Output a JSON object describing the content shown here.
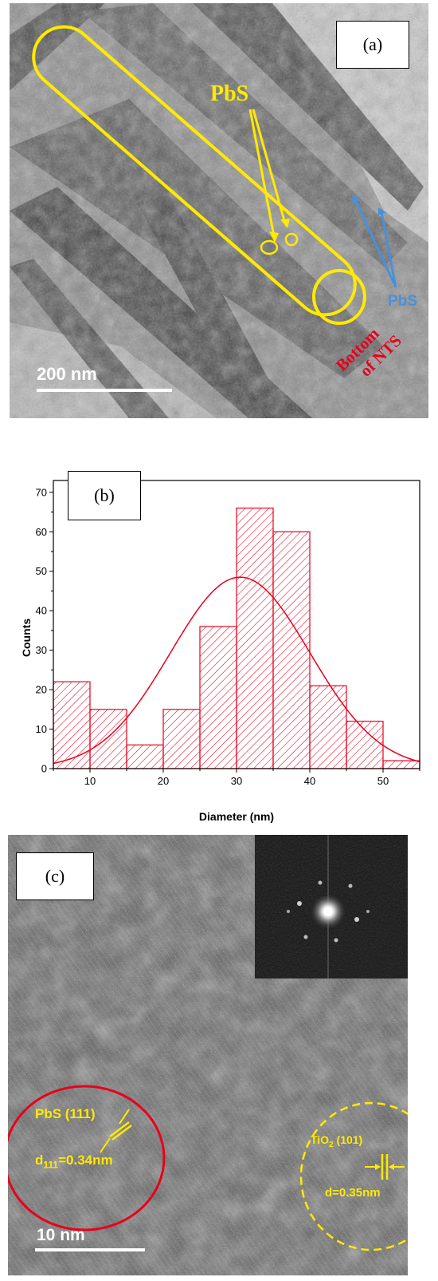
{
  "panel_a": {
    "label": "(a)",
    "pbs_yellow": "PbS",
    "pbs_blue": "PbS",
    "bottom_line1": "Bottom",
    "bottom_line2": "of NTS",
    "scale": "200 nm",
    "colors": {
      "yellow": "#ffea00",
      "blue": "#4a90d9",
      "red": "#e8001c"
    }
  },
  "panel_c": {
    "label": "(c)",
    "pbs_plane": "PbS (111)",
    "pbs_d_prefix": "d",
    "pbs_d_sub": "111",
    "pbs_d_value": "=0.34nm",
    "tio2_prefix": "TiO",
    "tio2_sub": "2",
    "tio2_plane": " (101)",
    "tio2_d": "d=0.35nm",
    "scale": "10 nm",
    "colors": {
      "yellow": "#ffea00",
      "red": "#e8001c"
    }
  },
  "chart_data": {
    "type": "bar",
    "panel_label": "(b)",
    "xlabel": "Diameter (nm)",
    "ylabel": "Counts",
    "xlim": [
      5,
      55
    ],
    "ylim": [
      0,
      73
    ],
    "xticks": [
      10,
      20,
      30,
      40,
      50
    ],
    "yticks": [
      0,
      10,
      20,
      30,
      40,
      50,
      60,
      70
    ],
    "bins": [
      {
        "x0": 5,
        "x1": 10,
        "count": 22
      },
      {
        "x0": 10,
        "x1": 15,
        "count": 15
      },
      {
        "x0": 15,
        "x1": 20,
        "count": 6
      },
      {
        "x0": 20,
        "x1": 25,
        "count": 15
      },
      {
        "x0": 25,
        "x1": 30,
        "count": 36
      },
      {
        "x0": 30,
        "x1": 35,
        "count": 66
      },
      {
        "x0": 35,
        "x1": 40,
        "count": 60
      },
      {
        "x0": 40,
        "x1": 45,
        "count": 21
      },
      {
        "x0": 45,
        "x1": 50,
        "count": 12
      },
      {
        "x0": 50,
        "x1": 55,
        "count": 2
      }
    ],
    "fit": {
      "type": "gaussian",
      "mean": 30.5,
      "sd": 9.5,
      "peak": 48.5
    },
    "color": "#e8001c",
    "grid": false
  }
}
